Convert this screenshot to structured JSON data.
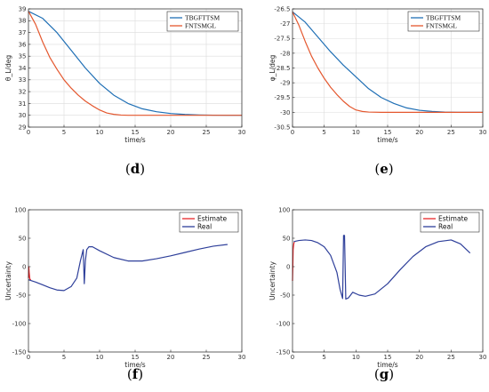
{
  "colors": {
    "blue": "#1f6fb5",
    "orange": "#e4572e",
    "red": "#e8252a",
    "navy": "#2e3f9a",
    "axis": "#222222",
    "grid": "#dcdcdc"
  },
  "chart_data": [
    {
      "id": "d",
      "type": "line",
      "caption": "(d)",
      "ylabel": "θ_L/deg",
      "xlabel": "time/s",
      "xlim": [
        0,
        30
      ],
      "ylim": [
        29,
        39
      ],
      "xticks": [
        0,
        5,
        10,
        15,
        20,
        25,
        30
      ],
      "yticks": [
        29,
        30,
        31,
        32,
        33,
        34,
        35,
        36,
        37,
        38,
        39
      ],
      "grid": true,
      "legend": "top-right",
      "legend_style": "serif",
      "series": [
        {
          "name": "TBGFTTSM",
          "color": "blue",
          "x": [
            0,
            2,
            4,
            6,
            8,
            10,
            12,
            14,
            16,
            18,
            20,
            22,
            24,
            26,
            28,
            30
          ],
          "y": [
            38.8,
            38.2,
            37.0,
            35.5,
            34.0,
            32.7,
            31.7,
            31.0,
            30.55,
            30.3,
            30.15,
            30.07,
            30.03,
            30.01,
            30.0,
            30.0
          ]
        },
        {
          "name": "FNTSMGL",
          "color": "orange",
          "x": [
            0,
            1,
            2,
            3,
            4,
            5,
            6,
            7,
            8,
            9,
            10,
            11,
            12,
            13,
            14,
            16,
            20,
            30
          ],
          "y": [
            38.8,
            37.7,
            36.2,
            34.9,
            33.9,
            33.0,
            32.3,
            31.7,
            31.2,
            30.8,
            30.45,
            30.2,
            30.08,
            30.02,
            30.0,
            30.0,
            30.0,
            30.0
          ]
        }
      ]
    },
    {
      "id": "e",
      "type": "line",
      "caption": "(e)",
      "ylabel": "φ_L/deg",
      "xlabel": "time/s",
      "xlim": [
        0,
        30
      ],
      "ylim": [
        -30.5,
        -26.5
      ],
      "xticks": [
        0,
        5,
        10,
        15,
        20,
        25,
        30
      ],
      "yticks": [
        -30.5,
        -30,
        -29.5,
        -29,
        -28.5,
        -28,
        -27.5,
        -27,
        -26.5
      ],
      "grid": true,
      "legend": "top-right",
      "legend_style": "serif",
      "series": [
        {
          "name": "TBGFTTSM",
          "color": "blue",
          "x": [
            0,
            2,
            4,
            6,
            8,
            10,
            12,
            14,
            16,
            18,
            20,
            22,
            24,
            26,
            28,
            30
          ],
          "y": [
            -26.6,
            -26.95,
            -27.45,
            -27.95,
            -28.4,
            -28.8,
            -29.2,
            -29.5,
            -29.7,
            -29.85,
            -29.93,
            -29.97,
            -29.99,
            -30.0,
            -30.0,
            -30.0
          ]
        },
        {
          "name": "FNTSMGL",
          "color": "orange",
          "x": [
            0,
            1,
            2,
            3,
            4,
            5,
            6,
            7,
            8,
            9,
            10,
            11,
            12,
            14,
            20,
            30
          ],
          "y": [
            -26.6,
            -27.05,
            -27.6,
            -28.1,
            -28.5,
            -28.85,
            -29.15,
            -29.4,
            -29.62,
            -29.8,
            -29.92,
            -29.97,
            -29.99,
            -30.0,
            -30.0,
            -30.0
          ]
        }
      ]
    },
    {
      "id": "f",
      "type": "line",
      "caption": "(f)",
      "ylabel": "Uncertainty",
      "xlabel": "time/s",
      "xlim": [
        0,
        30
      ],
      "ylim": [
        -150,
        100
      ],
      "xticks": [
        0,
        5,
        10,
        15,
        20,
        25,
        30
      ],
      "yticks": [
        -150,
        -100,
        -50,
        0,
        50,
        100
      ],
      "grid": false,
      "legend": "top-right",
      "legend_style": "sans",
      "series": [
        {
          "name": "Estimate",
          "color": "red",
          "x": [
            0,
            0.05,
            0.1,
            0.2,
            0.35
          ],
          "y": [
            -20,
            0,
            -10,
            -22,
            -23
          ]
        },
        {
          "name": "Real",
          "color": "navy",
          "x": [
            0,
            1,
            2,
            3,
            4,
            5,
            6,
            6.8,
            7.3,
            7.7,
            7.85,
            8.0,
            8.2,
            8.5,
            9,
            10,
            12,
            14,
            16,
            18,
            20,
            22,
            24,
            26,
            28
          ],
          "y": [
            -23,
            -27,
            -32,
            -37,
            -41,
            -42,
            -35,
            -20,
            10,
            30,
            -30,
            10,
            30,
            35,
            35,
            28,
            16,
            10,
            10,
            14,
            19,
            25,
            31,
            36,
            39
          ]
        }
      ]
    },
    {
      "id": "g",
      "type": "line",
      "caption": "(g)",
      "ylabel": "Uncertainty",
      "xlabel": "time/s",
      "xlim": [
        0,
        30
      ],
      "ylim": [
        -150,
        100
      ],
      "xticks": [
        0,
        5,
        10,
        15,
        20,
        25,
        30
      ],
      "yticks": [
        -150,
        -100,
        -50,
        0,
        50,
        100
      ],
      "grid": false,
      "legend": "top-right",
      "legend_style": "sans",
      "series": [
        {
          "name": "Estimate",
          "color": "red",
          "x": [
            0,
            0.05,
            0.1,
            0.2,
            0.3
          ],
          "y": [
            -25,
            0,
            30,
            40,
            44
          ]
        },
        {
          "name": "Real",
          "color": "navy",
          "x": [
            0.2,
            1,
            2,
            3,
            4,
            5,
            6,
            7,
            7.5,
            7.9,
            8.05,
            8.2,
            8.4,
            8.8,
            9.5,
            10.5,
            11.5,
            13,
            15,
            17,
            19,
            21,
            23,
            25,
            26.5,
            28
          ],
          "y": [
            44,
            46,
            47,
            46,
            42,
            35,
            20,
            -10,
            -40,
            -56,
            55,
            55,
            -57,
            -55,
            -45,
            -50,
            -52,
            -48,
            -30,
            -5,
            18,
            35,
            44,
            47,
            40,
            24
          ]
        }
      ]
    }
  ]
}
